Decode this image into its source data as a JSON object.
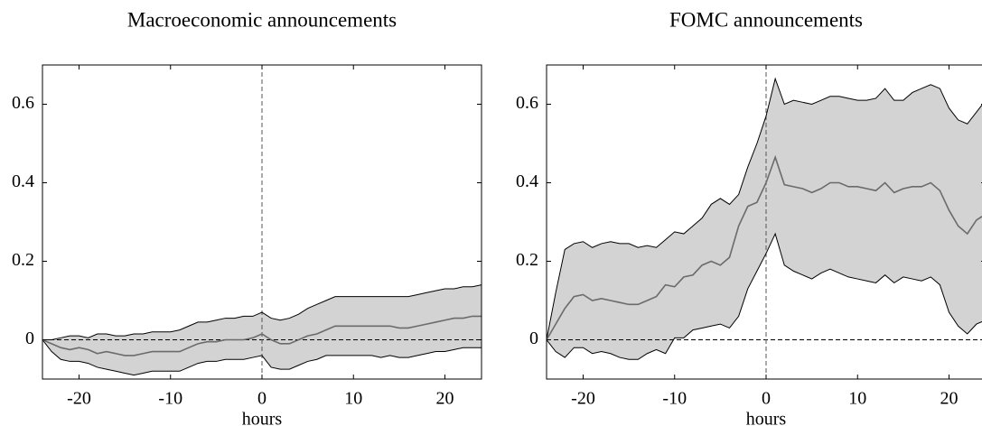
{
  "chart_data": [
    {
      "type": "line",
      "title": "Macroeconomic announcements",
      "xlabel": "hours",
      "x": [
        -24,
        -23,
        -22,
        -21,
        -20,
        -19,
        -18,
        -17,
        -16,
        -15,
        -14,
        -13,
        -12,
        -11,
        -10,
        -9,
        -8,
        -7,
        -6,
        -5,
        -4,
        -3,
        -2,
        -1,
        0,
        1,
        2,
        3,
        4,
        5,
        6,
        7,
        8,
        9,
        10,
        11,
        12,
        13,
        14,
        15,
        16,
        17,
        18,
        19,
        20,
        21,
        22,
        23,
        24
      ],
      "line": {
        "color": "#6b6b6b",
        "values": [
          0,
          -0.01,
          -0.02,
          -0.025,
          -0.02,
          -0.025,
          -0.035,
          -0.03,
          -0.035,
          -0.04,
          -0.04,
          -0.035,
          -0.03,
          -0.03,
          -0.03,
          -0.03,
          -0.02,
          -0.01,
          -0.005,
          -0.005,
          0,
          0,
          0,
          0.005,
          0.015,
          0,
          -0.01,
          -0.01,
          0,
          0.01,
          0.015,
          0.025,
          0.035,
          0.035,
          0.035,
          0.035,
          0.035,
          0.035,
          0.035,
          0.03,
          0.03,
          0.035,
          0.04,
          0.045,
          0.05,
          0.055,
          0.055,
          0.06,
          0.06
        ]
      },
      "band": {
        "color": "#d3d3d3",
        "upper": [
          0,
          0,
          0.005,
          0.01,
          0.01,
          0.005,
          0.015,
          0.015,
          0.01,
          0.01,
          0.015,
          0.015,
          0.02,
          0.02,
          0.02,
          0.025,
          0.035,
          0.045,
          0.045,
          0.05,
          0.055,
          0.055,
          0.06,
          0.06,
          0.07,
          0.055,
          0.05,
          0.055,
          0.065,
          0.08,
          0.09,
          0.1,
          0.11,
          0.11,
          0.11,
          0.11,
          0.11,
          0.11,
          0.11,
          0.11,
          0.11,
          0.115,
          0.12,
          0.125,
          0.13,
          0.13,
          0.135,
          0.135,
          0.14
        ],
        "lower": [
          0,
          -0.03,
          -0.05,
          -0.055,
          -0.055,
          -0.06,
          -0.07,
          -0.075,
          -0.08,
          -0.085,
          -0.09,
          -0.085,
          -0.08,
          -0.08,
          -0.08,
          -0.08,
          -0.07,
          -0.06,
          -0.055,
          -0.055,
          -0.05,
          -0.05,
          -0.05,
          -0.045,
          -0.04,
          -0.07,
          -0.075,
          -0.075,
          -0.065,
          -0.055,
          -0.05,
          -0.04,
          -0.04,
          -0.04,
          -0.04,
          -0.04,
          -0.04,
          -0.045,
          -0.04,
          -0.045,
          -0.045,
          -0.04,
          -0.035,
          -0.03,
          -0.03,
          -0.025,
          -0.02,
          -0.02,
          -0.02
        ]
      },
      "hline": 0,
      "vline": 0,
      "xlim": [
        -24,
        24
      ],
      "ylim": [
        -0.1,
        0.7
      ],
      "xticks": [
        -20,
        -10,
        0,
        10,
        20
      ],
      "yticks": [
        0,
        0.2,
        0.4,
        0.6
      ]
    },
    {
      "type": "line",
      "title": "FOMC announcements",
      "xlabel": "hours",
      "x": [
        -24,
        -23,
        -22,
        -21,
        -20,
        -19,
        -18,
        -17,
        -16,
        -15,
        -14,
        -13,
        -12,
        -11,
        -10,
        -9,
        -8,
        -7,
        -6,
        -5,
        -4,
        -3,
        -2,
        -1,
        0,
        1,
        2,
        3,
        4,
        5,
        6,
        7,
        8,
        9,
        10,
        11,
        12,
        13,
        14,
        15,
        16,
        17,
        18,
        19,
        20,
        21,
        22,
        23,
        24
      ],
      "line": {
        "color": "#6b6b6b",
        "values": [
          0,
          0.04,
          0.08,
          0.11,
          0.115,
          0.1,
          0.105,
          0.1,
          0.095,
          0.09,
          0.09,
          0.1,
          0.11,
          0.14,
          0.135,
          0.16,
          0.165,
          0.19,
          0.2,
          0.19,
          0.21,
          0.29,
          0.34,
          0.35,
          0.4,
          0.465,
          0.395,
          0.39,
          0.385,
          0.375,
          0.385,
          0.4,
          0.4,
          0.39,
          0.39,
          0.385,
          0.38,
          0.4,
          0.375,
          0.385,
          0.39,
          0.39,
          0.4,
          0.38,
          0.33,
          0.29,
          0.27,
          0.305,
          0.32
        ]
      },
      "band": {
        "color": "#d3d3d3",
        "upper": [
          0,
          0.12,
          0.23,
          0.245,
          0.25,
          0.235,
          0.245,
          0.25,
          0.245,
          0.245,
          0.235,
          0.24,
          0.235,
          0.255,
          0.275,
          0.27,
          0.29,
          0.31,
          0.345,
          0.36,
          0.345,
          0.37,
          0.44,
          0.5,
          0.57,
          0.665,
          0.6,
          0.61,
          0.605,
          0.6,
          0.61,
          0.62,
          0.62,
          0.615,
          0.61,
          0.61,
          0.615,
          0.64,
          0.61,
          0.61,
          0.63,
          0.64,
          0.65,
          0.64,
          0.59,
          0.56,
          0.55,
          0.58,
          0.61
        ],
        "lower": [
          0,
          -0.03,
          -0.045,
          -0.02,
          -0.02,
          -0.035,
          -0.03,
          -0.035,
          -0.045,
          -0.05,
          -0.05,
          -0.035,
          -0.025,
          -0.035,
          0.005,
          0.005,
          0.025,
          0.03,
          0.035,
          0.04,
          0.03,
          0.06,
          0.13,
          0.175,
          0.22,
          0.27,
          0.19,
          0.175,
          0.165,
          0.155,
          0.17,
          0.18,
          0.17,
          0.16,
          0.155,
          0.15,
          0.145,
          0.165,
          0.145,
          0.16,
          0.155,
          0.15,
          0.16,
          0.14,
          0.07,
          0.035,
          0.015,
          0.04,
          0.05
        ]
      },
      "hline": 0,
      "vline": 0,
      "xlim": [
        -24,
        24
      ],
      "ylim": [
        -0.1,
        0.7
      ],
      "xticks": [
        -20,
        -10,
        0,
        10,
        20
      ],
      "yticks": [
        0,
        0.2,
        0.4,
        0.6
      ]
    }
  ]
}
